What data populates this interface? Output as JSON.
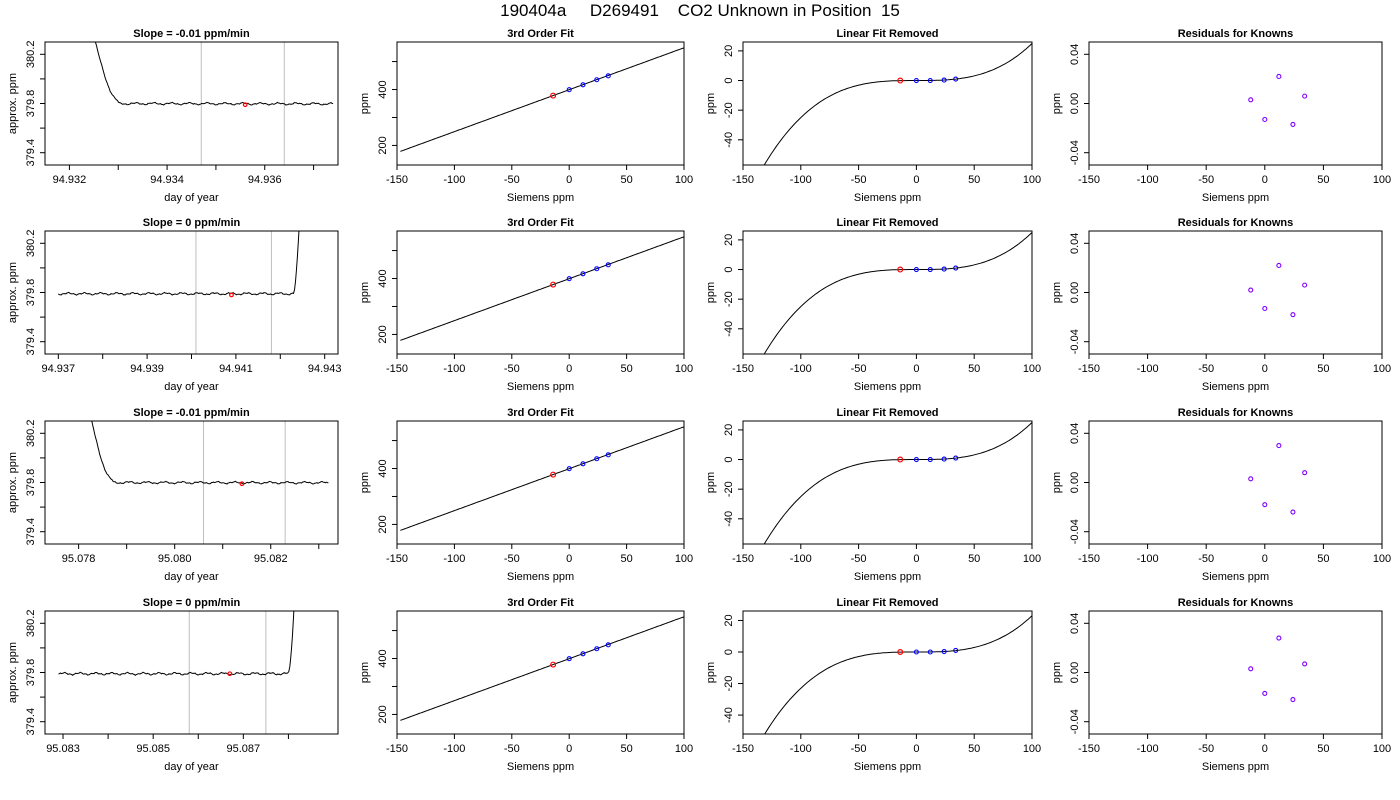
{
  "main_title": "190404a     D269491    CO2 Unknown in Position  15",
  "colors": {
    "line": "#000000",
    "known_point": "#0000ff",
    "unknown_point": "#ff0000",
    "residual_point": "#7f00ff",
    "vertical_marker": "#bebebe"
  },
  "chart_data": [
    {
      "type": "line",
      "title": "Slope =  -0.01  ppm/min",
      "xlabel": "day of year",
      "ylabel": "approx. ppm",
      "xlim": [
        94.9315,
        94.9375
      ],
      "ylim": [
        379.3,
        380.3
      ],
      "xticks": [
        94.932,
        94.933,
        94.934,
        94.935,
        94.936,
        94.937
      ],
      "xtick_labels": [
        "94.932",
        "",
        "94.934",
        "",
        "94.936",
        ""
      ],
      "yticks": [
        379.4,
        379.6,
        379.8,
        380.0,
        380.2
      ],
      "ytick_labels": [
        "379.4",
        "",
        "379.8",
        "",
        "380.2"
      ],
      "vlines": [
        94.9347,
        94.9364
      ],
      "highlight": [
        94.9356,
        379.79
      ],
      "trace": {
        "start": 94.9318,
        "end": 94.9374,
        "settle": 94.933,
        "level": 379.8,
        "baseline_shift": -0.003,
        "noise": 0.012,
        "transient": "start"
      }
    },
    {
      "type": "line",
      "title": "3rd Order Fit",
      "xlabel": "Siemens ppm",
      "ylabel": "ppm",
      "xlim": [
        -150,
        100
      ],
      "ylim": [
        130,
        570
      ],
      "xticks": [
        -150,
        -100,
        -50,
        0,
        50,
        100
      ],
      "yticks": [
        200,
        300,
        400,
        500
      ],
      "ytick_labels": [
        "200",
        "",
        "400",
        ""
      ],
      "curve": {
        "x0": -147,
        "x1": 100,
        "c": [
          399.32,
          1.5,
          0,
          0
        ]
      },
      "knowns": [
        [
          0,
          399.3
        ],
        [
          12,
          417
        ],
        [
          24,
          435
        ],
        [
          34,
          449
        ]
      ],
      "unknowns": [
        [
          -14,
          378.3
        ]
      ]
    },
    {
      "type": "line",
      "title": "Linear Fit Removed",
      "xlabel": "Siemens ppm",
      "ylabel": "ppm",
      "xlim": [
        -150,
        100
      ],
      "ylim": [
        -57,
        26
      ],
      "xticks": [
        -150,
        -100,
        -50,
        0,
        50,
        100
      ],
      "yticks": [
        -40,
        -20,
        0,
        20
      ],
      "curve": {
        "x0": -147,
        "x1": 100,
        "c": [
          0,
          0,
          0,
          2.5e-05
        ]
      },
      "knowns": [
        [
          0,
          0
        ],
        [
          12,
          0
        ],
        [
          24,
          0.3
        ],
        [
          34,
          1.0
        ]
      ],
      "unknowns": [
        [
          -14,
          0
        ]
      ]
    },
    {
      "type": "scatter",
      "title": "Residuals for Knowns",
      "xlabel": "Siemens ppm",
      "ylabel": "ppm",
      "xlim": [
        -150,
        100
      ],
      "ylim": [
        -0.05,
        0.05
      ],
      "xticks": [
        -150,
        -100,
        -50,
        0,
        50,
        100
      ],
      "yticks": [
        -0.04,
        0.0,
        0.04
      ],
      "ytick_labels": [
        "-0.04",
        "0.00",
        "0.04"
      ],
      "points": [
        [
          -12,
          0.003
        ],
        [
          0,
          -0.013
        ],
        [
          12,
          0.022
        ],
        [
          24,
          -0.017
        ],
        [
          34,
          0.006
        ]
      ]
    },
    {
      "type": "line",
      "title": "Slope =  0  ppm/min",
      "xlabel": "day of year",
      "ylabel": "approx. ppm",
      "xlim": [
        94.9367,
        94.9433
      ],
      "ylim": [
        379.3,
        380.3
      ],
      "xticks": [
        94.937,
        94.938,
        94.939,
        94.94,
        94.941,
        94.942,
        94.943
      ],
      "xtick_labels": [
        "94.937",
        "",
        "94.939",
        "",
        "94.941",
        "",
        "94.943"
      ],
      "yticks": [
        379.4,
        379.6,
        379.8,
        380.0,
        380.2
      ],
      "ytick_labels": [
        "379.4",
        "",
        "379.8",
        "",
        "380.2"
      ],
      "vlines": [
        94.9401,
        94.9418
      ],
      "highlight": [
        94.9409,
        379.78
      ],
      "trace": {
        "start": 94.937,
        "end": 94.9426,
        "settle": 94.9423,
        "level": 379.79,
        "baseline_shift": 0,
        "noise": 0.012,
        "transient": "end"
      }
    },
    {
      "type": "line",
      "title": "3rd Order Fit",
      "xlabel": "Siemens ppm",
      "ylabel": "ppm",
      "xlim": [
        -150,
        100
      ],
      "ylim": [
        130,
        570
      ],
      "xticks": [
        -150,
        -100,
        -50,
        0,
        50,
        100
      ],
      "yticks": [
        200,
        300,
        400,
        500
      ],
      "ytick_labels": [
        "200",
        "",
        "400",
        ""
      ],
      "curve": {
        "x0": -147,
        "x1": 100,
        "c": [
          399.32,
          1.5,
          0,
          0
        ]
      },
      "knowns": [
        [
          0,
          399.3
        ],
        [
          12,
          417
        ],
        [
          24,
          435
        ],
        [
          34,
          449
        ]
      ],
      "unknowns": [
        [
          -14,
          378.3
        ]
      ]
    },
    {
      "type": "line",
      "title": "Linear Fit Removed",
      "xlabel": "Siemens ppm",
      "ylabel": "ppm",
      "xlim": [
        -150,
        100
      ],
      "ylim": [
        -57,
        26
      ],
      "xticks": [
        -150,
        -100,
        -50,
        0,
        50,
        100
      ],
      "yticks": [
        -40,
        -20,
        0,
        20
      ],
      "curve": {
        "x0": -147,
        "x1": 100,
        "c": [
          0,
          0,
          0,
          2.5e-05
        ]
      },
      "knowns": [
        [
          0,
          0
        ],
        [
          12,
          0
        ],
        [
          24,
          0.3
        ],
        [
          34,
          1.0
        ]
      ],
      "unknowns": [
        [
          -14,
          0
        ]
      ]
    },
    {
      "type": "scatter",
      "title": "Residuals for Knowns",
      "xlabel": "Siemens ppm",
      "ylabel": "ppm",
      "xlim": [
        -150,
        100
      ],
      "ylim": [
        -0.05,
        0.05
      ],
      "xticks": [
        -150,
        -100,
        -50,
        0,
        50,
        100
      ],
      "yticks": [
        -0.04,
        0.0,
        0.04
      ],
      "ytick_labels": [
        "-0.04",
        "0.00",
        "0.04"
      ],
      "points": [
        [
          -12,
          0.002
        ],
        [
          0,
          -0.013
        ],
        [
          12,
          0.022
        ],
        [
          24,
          -0.018
        ],
        [
          34,
          0.006
        ]
      ]
    },
    {
      "type": "line",
      "title": "Slope =  -0.01  ppm/min",
      "xlabel": "day of year",
      "ylabel": "approx. ppm",
      "xlim": [
        95.0773,
        95.0834
      ],
      "ylim": [
        379.3,
        380.3
      ],
      "xticks": [
        95.078,
        95.079,
        95.08,
        95.081,
        95.082,
        95.083
      ],
      "xtick_labels": [
        "95.078",
        "",
        "95.080",
        "",
        "95.082",
        ""
      ],
      "yticks": [
        379.4,
        379.6,
        379.8,
        380.0,
        380.2
      ],
      "ytick_labels": [
        "379.4",
        "",
        "379.8",
        "",
        "380.2"
      ],
      "vlines": [
        95.0806,
        95.0823
      ],
      "highlight": [
        95.0814,
        379.79
      ],
      "trace": {
        "start": 95.0776,
        "end": 95.0832,
        "settle": 95.0787,
        "level": 379.8,
        "baseline_shift": -0.002,
        "noise": 0.012,
        "transient": "start"
      }
    },
    {
      "type": "line",
      "title": "3rd Order Fit",
      "xlabel": "Siemens ppm",
      "ylabel": "ppm",
      "xlim": [
        -150,
        100
      ],
      "ylim": [
        130,
        570
      ],
      "xticks": [
        -150,
        -100,
        -50,
        0,
        50,
        100
      ],
      "yticks": [
        200,
        300,
        400,
        500
      ],
      "ytick_labels": [
        "200",
        "",
        "400",
        ""
      ],
      "curve": {
        "x0": -147,
        "x1": 100,
        "c": [
          399.32,
          1.5,
          0,
          0
        ]
      },
      "knowns": [
        [
          0,
          399.3
        ],
        [
          12,
          417
        ],
        [
          24,
          435
        ],
        [
          34,
          449
        ]
      ],
      "unknowns": [
        [
          -14,
          378.3
        ]
      ]
    },
    {
      "type": "line",
      "title": "Linear Fit Removed",
      "xlabel": "Siemens ppm",
      "ylabel": "ppm",
      "xlim": [
        -150,
        100
      ],
      "ylim": [
        -57,
        26
      ],
      "xticks": [
        -150,
        -100,
        -50,
        0,
        50,
        100
      ],
      "yticks": [
        -40,
        -20,
        0,
        20
      ],
      "curve": {
        "x0": -147,
        "x1": 100,
        "c": [
          0,
          0,
          0,
          2.5e-05
        ]
      },
      "knowns": [
        [
          0,
          0
        ],
        [
          12,
          0
        ],
        [
          24,
          0.3
        ],
        [
          34,
          1.0
        ]
      ],
      "unknowns": [
        [
          -14,
          0
        ]
      ]
    },
    {
      "type": "scatter",
      "title": "Residuals for Knowns",
      "xlabel": "Siemens ppm",
      "ylabel": "ppm",
      "xlim": [
        -150,
        100
      ],
      "ylim": [
        -0.05,
        0.05
      ],
      "xticks": [
        -150,
        -100,
        -50,
        0,
        50,
        100
      ],
      "yticks": [
        -0.04,
        0.0,
        0.04
      ],
      "ytick_labels": [
        "-0.04",
        "0.00",
        "0.04"
      ],
      "points": [
        [
          -12,
          0.003
        ],
        [
          0,
          -0.018
        ],
        [
          12,
          0.03
        ],
        [
          24,
          -0.024
        ],
        [
          34,
          0.008
        ]
      ]
    },
    {
      "type": "line",
      "title": "Slope =  0  ppm/min",
      "xlabel": "day of year",
      "ylabel": "approx. ppm",
      "xlim": [
        95.0826,
        95.0891
      ],
      "ylim": [
        379.3,
        380.3
      ],
      "xticks": [
        95.083,
        95.084,
        95.085,
        95.086,
        95.087,
        95.088
      ],
      "xtick_labels": [
        "95.083",
        "",
        "95.085",
        "",
        "95.087",
        ""
      ],
      "yticks": [
        379.4,
        379.6,
        379.8,
        380.0,
        380.2
      ],
      "ytick_labels": [
        "379.4",
        "",
        "379.8",
        "",
        "380.2"
      ],
      "vlines": [
        95.0858,
        95.0875
      ],
      "highlight": [
        95.0867,
        379.79
      ],
      "trace": {
        "start": 95.0829,
        "end": 95.0883,
        "settle": 95.088,
        "level": 379.79,
        "baseline_shift": 0,
        "noise": 0.013,
        "transient": "end"
      }
    },
    {
      "type": "line",
      "title": "3rd Order Fit",
      "xlabel": "Siemens ppm",
      "ylabel": "ppm",
      "xlim": [
        -150,
        100
      ],
      "ylim": [
        130,
        570
      ],
      "xticks": [
        -150,
        -100,
        -50,
        0,
        50,
        100
      ],
      "yticks": [
        200,
        300,
        400,
        500
      ],
      "ytick_labels": [
        "200",
        "",
        "400",
        ""
      ],
      "curve": {
        "x0": -147,
        "x1": 100,
        "c": [
          399.32,
          1.5,
          0,
          0
        ]
      },
      "knowns": [
        [
          0,
          399.3
        ],
        [
          12,
          417
        ],
        [
          24,
          435
        ],
        [
          34,
          449
        ]
      ],
      "unknowns": [
        [
          -14,
          378.3
        ]
      ]
    },
    {
      "type": "line",
      "title": "Linear Fit Removed",
      "xlabel": "Siemens ppm",
      "ylabel": "ppm",
      "xlim": [
        -150,
        100
      ],
      "ylim": [
        -52,
        26
      ],
      "xticks": [
        -150,
        -100,
        -50,
        0,
        50,
        100
      ],
      "yticks": [
        -40,
        -20,
        0,
        20
      ],
      "curve": {
        "x0": -147,
        "x1": 100,
        "c": [
          0,
          0,
          0,
          2.3e-05
        ]
      },
      "knowns": [
        [
          0,
          0
        ],
        [
          12,
          0
        ],
        [
          24,
          0.3
        ],
        [
          34,
          1.0
        ]
      ],
      "unknowns": [
        [
          -14,
          0
        ]
      ]
    },
    {
      "type": "scatter",
      "title": "Residuals for Knowns",
      "xlabel": "Siemens ppm",
      "ylabel": "ppm",
      "xlim": [
        -150,
        100
      ],
      "ylim": [
        -0.05,
        0.05
      ],
      "xticks": [
        -150,
        -100,
        -50,
        0,
        50,
        100
      ],
      "yticks": [
        -0.04,
        0.0,
        0.04
      ],
      "ytick_labels": [
        "-0.04",
        "0.00",
        "0.04"
      ],
      "points": [
        [
          -12,
          0.003
        ],
        [
          0,
          -0.017
        ],
        [
          12,
          0.028
        ],
        [
          24,
          -0.022
        ],
        [
          34,
          0.007
        ]
      ]
    }
  ]
}
